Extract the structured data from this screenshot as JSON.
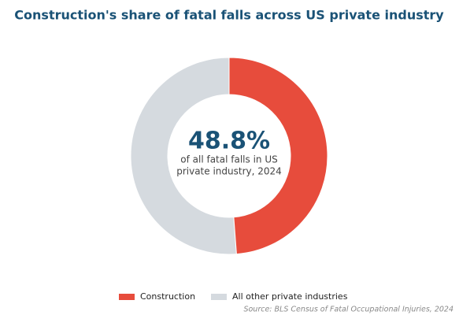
{
  "chart_data": {
    "type": "donut",
    "title": "Construction's share of fatal falls across US private industry",
    "categories": [
      "Construction",
      "All other private industries"
    ],
    "values": [
      48.8,
      51.2
    ],
    "colors": [
      "#e74c3c",
      "#d5dadf"
    ],
    "center_label": "48.8%",
    "center_text": [
      "of all fatal falls in US",
      "private industry, 2024"
    ],
    "legend": "bottom",
    "source": "Source: BLS Census of Fatal Occupational Injuries, 2024"
  }
}
